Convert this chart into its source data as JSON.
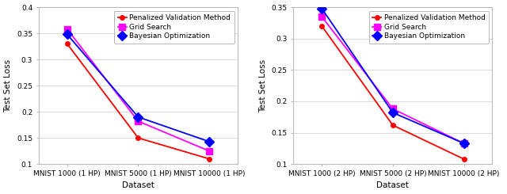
{
  "plot1": {
    "xlabel": "Dataset",
    "ylabel": "Test Set Loss",
    "xtick_labels": [
      "MNIST 1000 (1 HP)",
      "MNIST 5000 (1 HP)",
      "MNIST 10000 (1 HP)"
    ],
    "ylim": [
      0.1,
      0.4
    ],
    "yticks": [
      0.1,
      0.15,
      0.2,
      0.25,
      0.3,
      0.35,
      0.4
    ],
    "pvm": [
      0.33,
      0.15,
      0.11
    ],
    "gs": [
      0.358,
      0.182,
      0.125
    ],
    "bo": [
      0.348,
      0.19,
      0.143
    ]
  },
  "plot2": {
    "xlabel": "Dataset",
    "ylabel": "Test Set Loss",
    "xtick_labels": [
      "MNIST 1000 (2 HP)",
      "MNIST 5000 (2 HP)",
      "MNIST 10000 (2 HP)"
    ],
    "ylim": [
      0.1,
      0.35
    ],
    "yticks": [
      0.1,
      0.15,
      0.2,
      0.25,
      0.3,
      0.35
    ],
    "pvm": [
      0.32,
      0.162,
      0.108
    ],
    "gs": [
      0.335,
      0.188,
      0.133
    ],
    "bo": [
      0.348,
      0.182,
      0.133
    ]
  },
  "pvm_color": "#FF0000",
  "gs_color": "#FF00FF",
  "bo_color": "#0000FF",
  "pvm_marker": "o",
  "gs_marker": "s",
  "bo_marker": "D",
  "pvm_markersize": 4,
  "gs_markersize": 6,
  "bo_markersize": 6,
  "linewidth": 1.3,
  "legend_labels": [
    "Penalized Validation Method",
    "Grid Search",
    "Bayesian Optimization"
  ],
  "bg_color": "#ffffff",
  "label_fontsize": 7.5,
  "tick_fontsize": 6.5,
  "legend_fontsize": 6.5
}
